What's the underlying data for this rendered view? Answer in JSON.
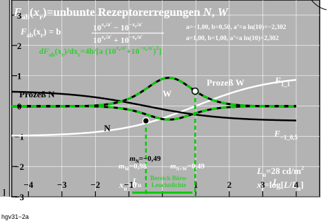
{
  "footer": {
    "code": "hgv31−2a"
  },
  "colors": {
    "background": "#ffffff",
    "plot_bg": "#b3b3b3",
    "frame": "#000000",
    "curve_white": "#ffffff",
    "curve_black": "#000000",
    "curve_green": "#00cc00",
    "green_text": "#33cc33",
    "grid": "#ffffff"
  },
  "chart_data": {
    "type": "line",
    "title": {
      "F": "F",
      "sub": "ab",
      "open": "(",
      "x": "x",
      "xsub": "r",
      "close": ")",
      "rest": "=unbunte Rezeptorerregungen ",
      "N": "N",
      "comma": ", ",
      "W": "W"
    },
    "formula_main": {
      "lhs_F": "F",
      "lhs_sub": "ab",
      "lhs_arg": "(x",
      "lhs_argsub": "r",
      "lhs_close": ") = b",
      "num_left": "10",
      "num_mid": " − 10",
      "den_left": "10",
      "den_mid": " + 10",
      "exp_pos": "x",
      "exp_pos_sub": "r",
      "exp_pos_tail": "/a'",
      "exp_neg": "−x",
      "exp_neg_sub": "r",
      "exp_neg_tail": "/a'"
    },
    "formula_derivative": {
      "d": "dF",
      "sub": "ab",
      "arg": "(x",
      "argsub": "r",
      "mid": ")/dx",
      "msub": "r",
      "rhs": "=4b/[a (10",
      "e1": "x",
      "e1sub": "r",
      "e1tail": "/a'",
      "plus": "+10",
      "e2": "−x",
      "e2sub": "r",
      "e2tail": "/a'",
      "end": ")",
      "sq": "2",
      "endb": "]"
    },
    "params": [
      "a=−1,00, b=0,50, a’=a ln(10)=−2,302",
      "a=1,00, b=1,00, a’=a ln(10)=2,302"
    ],
    "x_ticks": [
      "−4",
      "−3",
      "−2",
      "−1",
      "",
      "1",
      "2",
      "3",
      "4"
    ],
    "x_tick_values": [
      -4,
      -3,
      -2,
      -1,
      0,
      1,
      2,
      3,
      4
    ],
    "x0_label": {
      "x": "x",
      "sub": "u",
      "eq": "=0"
    },
    "y_ticks": [
      "−3",
      "−2",
      "−1",
      "0",
      "1",
      "2",
      "3"
    ],
    "y_tick_values": [
      -3,
      -2,
      -1,
      0,
      1,
      2,
      3
    ],
    "xlim": [
      -4.5,
      4.7
    ],
    "ylim": [
      -3,
      3.5
    ],
    "xlabel": {
      "x": "x",
      "sub": "r",
      "eq": "=log[",
      "L": "L",
      "slash": "/",
      "Lu": "L",
      "Lusub": "u",
      "close": "]"
    },
    "series": [
      {
        "name": "Prozeß W",
        "label_right": "F",
        "label_right_sub": "1_1",
        "function": "tanh",
        "a": 1.0,
        "b": 1.0,
        "x": [
          -4,
          -3.5,
          -3,
          -2.5,
          -2,
          -1.5,
          -1,
          -0.5,
          0,
          0.5,
          1,
          1.5,
          2,
          2.5,
          3,
          3.5,
          4
        ],
        "values": [
          -0.999,
          -0.996,
          -0.987,
          -0.956,
          -0.856,
          -0.561,
          0.0,
          0.561,
          0.856,
          0.956,
          0.987,
          0.996,
          0.999,
          1.0,
          1.0,
          1.0,
          1.0
        ]
      },
      {
        "name": "Prozeß N",
        "label_right": "F",
        "label_right_sub": "−1_0,5",
        "function": "tanh",
        "a": -1.0,
        "b": 0.5,
        "x": [
          -4,
          -3.5,
          -3,
          -2.5,
          -2,
          -1.5,
          -1,
          -0.5,
          0,
          0.5,
          1,
          1.5,
          2,
          2.5,
          3,
          3.5,
          4
        ],
        "values": [
          0.499,
          0.498,
          0.494,
          0.478,
          0.428,
          0.281,
          0.0,
          -0.281,
          -0.428,
          -0.478,
          -0.494,
          -0.498,
          -0.499,
          -0.5,
          -0.5,
          -0.5,
          -0.5
        ]
      }
    ],
    "point_labels": {
      "W": "W",
      "N": "N"
    },
    "points": {
      "W": {
        "x": 0.98,
        "y": 0.49
      },
      "N": {
        "x": -0.49,
        "y": -0.49
      }
    },
    "annotations": {
      "mN": {
        "m": "m",
        "sub": "N",
        "val": "=−0,49"
      },
      "mW": {
        "m": "m",
        "sub": "W",
        "val": "=0,98"
      },
      "mNW": {
        "m": "m",
        "sub": "N+W",
        "val": "=0,49"
      },
      "Lu_small": {
        "L": "L",
        "sub": "u"
      },
      "bereich": [
        "Bereich Büro-",
        "Leuchtdichte"
      ],
      "Lu_value": {
        "L": "L",
        "sub": "u",
        "val": "=28 cd/m",
        "sup": "2"
      },
      "L_letter": "L",
      "left_edge_bracket": "]"
    },
    "bureau_range": [
      -0.9,
      0.9
    ],
    "grid": true,
    "legend": "inline-labels"
  }
}
